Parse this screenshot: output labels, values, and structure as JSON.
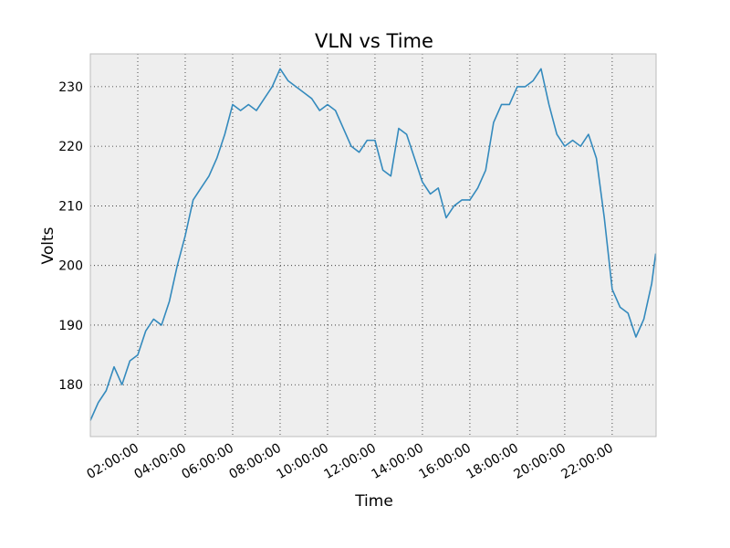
{
  "chart_data": {
    "type": "line",
    "title": "VLN vs Time",
    "xlabel": "Time",
    "ylabel": "Volts",
    "x": [
      "00:00:00",
      "00:20:00",
      "00:40:00",
      "01:00:00",
      "01:20:00",
      "01:40:00",
      "02:00:00",
      "02:20:00",
      "02:40:00",
      "03:00:00",
      "03:20:00",
      "03:40:00",
      "04:00:00",
      "04:20:00",
      "04:40:00",
      "05:00:00",
      "05:20:00",
      "05:40:00",
      "06:00:00",
      "06:20:00",
      "06:40:00",
      "07:00:00",
      "07:20:00",
      "07:40:00",
      "08:00:00",
      "08:20:00",
      "08:40:00",
      "09:00:00",
      "09:20:00",
      "09:40:00",
      "10:00:00",
      "10:20:00",
      "10:40:00",
      "11:00:00",
      "11:20:00",
      "11:40:00",
      "12:00:00",
      "12:20:00",
      "12:40:00",
      "13:00:00",
      "13:20:00",
      "13:40:00",
      "14:00:00",
      "14:20:00",
      "14:40:00",
      "15:00:00",
      "15:20:00",
      "15:40:00",
      "16:00:00",
      "16:20:00",
      "16:40:00",
      "17:00:00",
      "17:20:00",
      "17:40:00",
      "18:00:00",
      "18:20:00",
      "18:40:00",
      "19:00:00",
      "19:20:00",
      "19:40:00",
      "20:00:00",
      "20:20:00",
      "20:40:00",
      "21:00:00",
      "21:20:00",
      "21:40:00",
      "22:00:00",
      "22:20:00",
      "22:40:00",
      "23:00:00",
      "23:20:00",
      "23:40:00",
      "23:50:00"
    ],
    "series": [
      {
        "name": "VLN",
        "color": "#348abd",
        "values": [
          174,
          177,
          179,
          183,
          180,
          184,
          185,
          189,
          191,
          190,
          194,
          200,
          205,
          211,
          213,
          215,
          218,
          222,
          227,
          226,
          227,
          226,
          228,
          230,
          233,
          231,
          230,
          229,
          228,
          226,
          227,
          226,
          223,
          220,
          219,
          221,
          221,
          216,
          215,
          223,
          222,
          218,
          214,
          212,
          213,
          208,
          210,
          211,
          211,
          213,
          216,
          224,
          227,
          227,
          230,
          230,
          231,
          233,
          227,
          222,
          220,
          221,
          220,
          222,
          218,
          208,
          196,
          193,
          192,
          188,
          191,
          197,
          202
        ]
      }
    ],
    "xlim": [
      "00:00:00",
      "23:51:00"
    ],
    "xticks": [
      "02:00:00",
      "04:00:00",
      "06:00:00",
      "08:00:00",
      "10:00:00",
      "12:00:00",
      "14:00:00",
      "16:00:00",
      "18:00:00",
      "20:00:00",
      "22:00:00"
    ],
    "ylim": [
      171.3,
      235.5
    ],
    "yticks": [
      180,
      190,
      200,
      210,
      220,
      230
    ],
    "grid": true
  }
}
